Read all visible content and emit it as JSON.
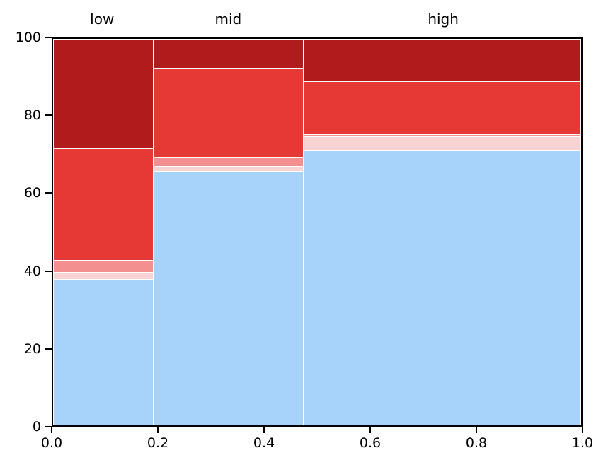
{
  "figure": {
    "background": "#ffffff"
  },
  "chart_data": {
    "type": "mosaic",
    "title": "",
    "description": "Mosaic / marimekko plot: three categorical columns of variable width on x (0 to 1), each a percentage stack (0 to 100) of five segments separated by thin white gaps.",
    "x_axis": {
      "range": [
        0,
        1
      ],
      "tick_values": [
        0.0,
        0.2,
        0.4,
        0.6,
        0.8,
        1.0
      ],
      "tick_labels": [
        "0.0",
        "0.2",
        "0.4",
        "0.6",
        "0.8",
        "1.0"
      ]
    },
    "y_axis": {
      "range": [
        0,
        100
      ],
      "tick_values": [
        0,
        20,
        40,
        60,
        80,
        100
      ],
      "tick_labels": [
        "0",
        "20",
        "40",
        "60",
        "80",
        "100"
      ]
    },
    "segment_order_bottom_to_top": [
      "light-blue",
      "light-pink",
      "salmon",
      "red",
      "dark-red"
    ],
    "colors": {
      "light-blue": "#a7d2fa",
      "light-pink": "#f8d3d4",
      "salmon": "#f48f8f",
      "red": "#e63936",
      "dark-red": "#b21b1b",
      "gap": "#ffffff",
      "spine": "#000000",
      "text": "#000000"
    },
    "columns": [
      {
        "label": "low",
        "x0": 0.0,
        "x1": 0.19,
        "values": [
          37.7,
          1.7,
          3.2,
          29.0,
          28.4
        ]
      },
      {
        "label": "mid",
        "x0": 0.19,
        "x1": 0.475,
        "values": [
          65.7,
          1.2,
          2.3,
          23.2,
          7.6
        ]
      },
      {
        "label": "high",
        "x0": 0.475,
        "x1": 1.0,
        "values": [
          71.2,
          3.5,
          0.7,
          13.7,
          10.9
        ]
      }
    ]
  }
}
